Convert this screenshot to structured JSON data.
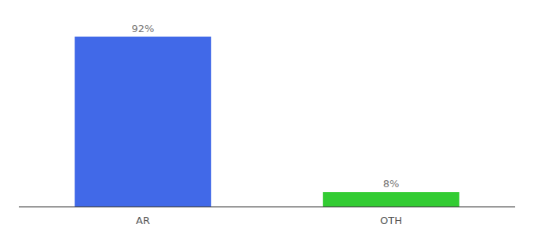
{
  "chart_data": {
    "type": "bar",
    "categories": [
      "AR",
      "OTH"
    ],
    "values": [
      92,
      8
    ],
    "value_labels": [
      "92%",
      "8%"
    ],
    "colors": [
      "#4169e8",
      "#33cc33"
    ],
    "ylim": [
      0,
      105
    ],
    "data_labels": true,
    "tick_labels": "x",
    "grid": false
  }
}
